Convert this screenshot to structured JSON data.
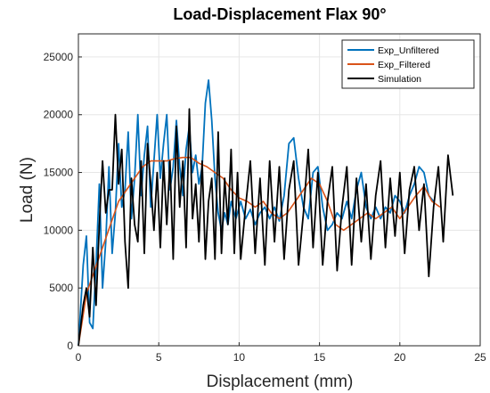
{
  "chart_data": {
    "type": "line",
    "title": "Load-Displacement Flax 90°",
    "xlabel": "Displacement (mm)",
    "ylabel": "Load (N)",
    "xlim": [
      0,
      25
    ],
    "ylim": [
      0,
      27000
    ],
    "xticks": [
      0,
      5,
      10,
      15,
      20,
      25
    ],
    "yticks": [
      0,
      5000,
      10000,
      15000,
      20000,
      25000
    ],
    "xtick_labels": [
      "0",
      "5",
      "10",
      "15",
      "20",
      "25"
    ],
    "ytick_labels": [
      "0",
      "5000",
      "10000",
      "15000",
      "20000",
      "25000"
    ],
    "grid": true,
    "legend_position": "top-right",
    "series": [
      {
        "name": "Exp_Unfiltered",
        "color": "#0072BD",
        "x": [
          0,
          0.3,
          0.5,
          0.7,
          0.9,
          1.1,
          1.3,
          1.5,
          1.7,
          1.9,
          2.1,
          2.3,
          2.5,
          2.7,
          2.9,
          3.1,
          3.3,
          3.5,
          3.7,
          3.9,
          4.1,
          4.3,
          4.5,
          4.7,
          4.9,
          5.1,
          5.3,
          5.5,
          5.7,
          5.9,
          6.1,
          6.3,
          6.5,
          6.7,
          6.9,
          7.1,
          7.3,
          7.5,
          7.7,
          7.9,
          8.1,
          8.3,
          8.5,
          8.7,
          8.9,
          9.1,
          9.3,
          9.5,
          9.8,
          10.1,
          10.4,
          10.7,
          11.0,
          11.3,
          11.6,
          11.9,
          12.2,
          12.5,
          12.8,
          13.1,
          13.4,
          13.7,
          14.0,
          14.3,
          14.6,
          14.9,
          15.2,
          15.5,
          15.8,
          16.1,
          16.4,
          16.7,
          17.0,
          17.3,
          17.6,
          17.9,
          18.2,
          18.5,
          18.8,
          19.1,
          19.4,
          19.7,
          20.0,
          20.3,
          20.6,
          20.9,
          21.2,
          21.5,
          21.8,
          22.1
        ],
        "values": [
          0,
          7000,
          9500,
          2000,
          1500,
          7000,
          14000,
          5000,
          9000,
          15500,
          8000,
          11500,
          17500,
          12000,
          13500,
          18500,
          11000,
          14500,
          20000,
          13000,
          16500,
          19000,
          12000,
          16000,
          20000,
          14500,
          17500,
          20000,
          13500,
          15500,
          19500,
          15500,
          13000,
          17000,
          19000,
          15000,
          16500,
          14000,
          15500,
          21000,
          23000,
          19500,
          14500,
          11500,
          10000,
          11500,
          10500,
          12500,
          11000,
          12500,
          11000,
          11800,
          10500,
          11500,
          12000,
          11000,
          12000,
          10800,
          13000,
          17500,
          18000,
          14500,
          12000,
          11000,
          15000,
          15500,
          12000,
          10000,
          10500,
          11500,
          11000,
          12500,
          11000,
          13500,
          15000,
          12000,
          11000,
          12000,
          11000,
          12000,
          11500,
          13000,
          12500,
          11500,
          13000,
          14000,
          15500,
          15000,
          13000,
          12500
        ]
      },
      {
        "name": "Exp_Filtered",
        "color": "#D95319",
        "x": [
          0,
          0.5,
          1.0,
          1.5,
          2.0,
          2.5,
          3.0,
          3.5,
          4.0,
          4.5,
          5.0,
          5.5,
          6.0,
          6.5,
          7.0,
          7.5,
          8.0,
          8.5,
          9.0,
          9.5,
          10.0,
          10.5,
          11.0,
          11.5,
          12.0,
          12.5,
          13.0,
          13.5,
          14.0,
          14.5,
          15.0,
          15.5,
          16.0,
          16.5,
          17.0,
          17.5,
          18.0,
          18.5,
          19.0,
          19.5,
          20.0,
          20.5,
          21.0,
          21.5,
          22.0,
          22.5
        ],
        "values": [
          0,
          4500,
          6500,
          8500,
          10500,
          12500,
          13500,
          14500,
          15500,
          16000,
          16000,
          16000,
          16200,
          16300,
          16300,
          15800,
          15500,
          15000,
          14500,
          13500,
          12800,
          12500,
          12000,
          12500,
          11500,
          11000,
          11500,
          12500,
          13500,
          14500,
          14000,
          12500,
          10500,
          10000,
          10500,
          11000,
          11500,
          11000,
          11500,
          12000,
          11000,
          12000,
          13000,
          13800,
          12500,
          12000
        ]
      },
      {
        "name": "Simulation",
        "color": "#000000",
        "x": [
          0,
          0.3,
          0.5,
          0.7,
          0.9,
          1.1,
          1.3,
          1.5,
          1.7,
          1.9,
          2.1,
          2.3,
          2.5,
          2.7,
          2.9,
          3.1,
          3.3,
          3.5,
          3.7,
          3.9,
          4.1,
          4.3,
          4.5,
          4.7,
          4.9,
          5.1,
          5.3,
          5.5,
          5.7,
          5.9,
          6.1,
          6.3,
          6.5,
          6.7,
          6.9,
          7.1,
          7.3,
          7.5,
          7.7,
          7.9,
          8.1,
          8.3,
          8.5,
          8.7,
          8.9,
          9.1,
          9.3,
          9.5,
          9.7,
          9.9,
          10.1,
          10.4,
          10.7,
          11.0,
          11.3,
          11.6,
          11.9,
          12.2,
          12.5,
          12.8,
          13.1,
          13.4,
          13.7,
          14.0,
          14.3,
          14.6,
          14.9,
          15.2,
          15.5,
          15.8,
          16.1,
          16.4,
          16.7,
          17.0,
          17.3,
          17.6,
          17.9,
          18.2,
          18.5,
          18.8,
          19.1,
          19.4,
          19.7,
          20.0,
          20.3,
          20.6,
          20.9,
          21.2,
          21.5,
          21.8,
          22.1,
          22.4,
          22.7,
          23.0,
          23.3
        ],
        "values": [
          0,
          3500,
          5000,
          2500,
          8500,
          3500,
          10500,
          16000,
          11500,
          13500,
          13500,
          20000,
          14000,
          17000,
          9000,
          5000,
          14500,
          10500,
          9000,
          16000,
          8000,
          17500,
          14000,
          10000,
          15000,
          8500,
          16000,
          10500,
          16000,
          7500,
          19000,
          12000,
          16000,
          8500,
          20500,
          11000,
          14000,
          9000,
          16000,
          7500,
          12500,
          14500,
          7500,
          18500,
          8000,
          14500,
          10500,
          17000,
          8000,
          15000,
          7500,
          12000,
          16000,
          8000,
          14500,
          7000,
          16000,
          9000,
          15500,
          7500,
          13500,
          16000,
          7000,
          11500,
          17000,
          8500,
          15000,
          7000,
          12500,
          15500,
          6500,
          12000,
          15500,
          7000,
          14500,
          9000,
          14000,
          7500,
          13000,
          16000,
          8500,
          14500,
          9500,
          15000,
          8000,
          13500,
          15500,
          10000,
          14000,
          6000,
          12000,
          15500,
          9000,
          16500,
          13000
        ]
      }
    ]
  }
}
